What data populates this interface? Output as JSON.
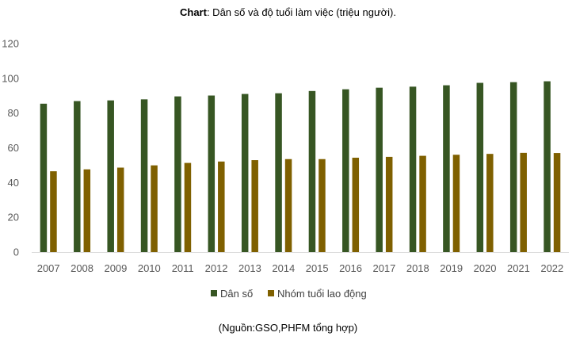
{
  "title": {
    "prefix": "Chart",
    "text": ": Dân số và độ tuổi làm việc (triệu người)."
  },
  "source": "(Nguồn:GSO,PHFM tổng hợp)",
  "colors": {
    "series1": "#375623",
    "series2": "#7f6000",
    "axis": "#d9d9d9"
  },
  "chart_data": {
    "type": "bar",
    "categories": [
      "2007",
      "2008",
      "2009",
      "2010",
      "2011",
      "2012",
      "2013",
      "2014",
      "2015",
      "2016",
      "2017",
      "2018",
      "2019",
      "2020",
      "2021",
      "2022"
    ],
    "series": [
      {
        "name": "Dân số",
        "values": [
          85.4,
          86.9,
          87.3,
          87.9,
          89.6,
          90.1,
          91.0,
          91.4,
          92.7,
          93.7,
          94.6,
          95.2,
          96.0,
          97.4,
          97.8,
          98.3
        ]
      },
      {
        "name": "Nhóm tuổi lao động",
        "values": [
          46.5,
          47.6,
          48.6,
          49.9,
          51.3,
          52.1,
          52.9,
          53.5,
          53.5,
          54.3,
          54.8,
          55.4,
          56.0,
          56.5,
          57.1,
          57.0
        ]
      }
    ],
    "ylim": [
      0,
      120
    ],
    "yticks": [
      0,
      20,
      40,
      60,
      80,
      100,
      120
    ],
    "grid": false,
    "legend": "bottom-center"
  }
}
